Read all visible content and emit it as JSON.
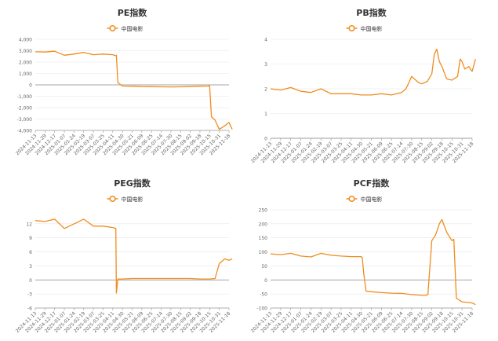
{
  "legend_label": "中国电影",
  "x_tick_labels": [
    "2024-11-13",
    "2024-11-29",
    "2024-12-17",
    "2025-01-07",
    "2025-01-24",
    "2025-02-19",
    "2025-03-07",
    "2025-03-25",
    "2025-04-11",
    "2025-04-30",
    "2025-05-21",
    "2025-06-09",
    "2025-06-25",
    "2025-07-14",
    "2025-07-30",
    "2025-08-15",
    "2025-09-02",
    "2025-09-18",
    "2025-10-15",
    "2025-10-31",
    "2025-11-18"
  ],
  "chart_data": [
    {
      "type": "line",
      "title": "PE指数",
      "legend": "top-center",
      "grid": true,
      "ylim": [
        -4000,
        4000
      ],
      "y_ticks": [
        -4000,
        -3000,
        -2000,
        -1000,
        0,
        1000,
        2000,
        3000,
        4000
      ],
      "y_tick_labels": [
        "-4,000",
        "-3,000",
        "-2,000",
        "-1,000",
        "0",
        "1,000",
        "2,000",
        "3,000",
        "4,000"
      ],
      "series": [
        {
          "name": "中国电影",
          "color": "#f08c1e",
          "x": [
            "2024-11-13",
            "2024-11-29",
            "2024-12-17",
            "2025-01-07",
            "2025-01-24",
            "2025-02-19",
            "2025-03-07",
            "2025-03-25",
            "2025-04-11",
            "2025-04-17",
            "2025-04-18",
            "2025-04-21",
            "2025-04-30",
            "2025-05-21",
            "2025-06-09",
            "2025-06-25",
            "2025-07-14",
            "2025-07-30",
            "2025-08-15",
            "2025-09-02",
            "2025-09-18",
            "2025-10-10",
            "2025-10-15",
            "2025-10-18",
            "2025-10-24",
            "2025-10-31",
            "2025-11-10",
            "2025-11-18",
            "2025-11-24"
          ],
          "values": [
            2900,
            2880,
            2950,
            2600,
            2700,
            2850,
            2650,
            2700,
            2650,
            2550,
            2600,
            200,
            -100,
            -120,
            -150,
            -160,
            -170,
            -180,
            -170,
            -150,
            -120,
            -100,
            -80,
            -2800,
            -3100,
            -3900,
            -3600,
            -3300,
            -3900
          ]
        }
      ]
    },
    {
      "type": "line",
      "title": "PB指数",
      "legend": "top-center",
      "grid": true,
      "ylim": [
        0,
        4
      ],
      "y_ticks": [
        0,
        1,
        2,
        3,
        4
      ],
      "y_tick_labels": [
        "0",
        "1",
        "2",
        "3",
        "4"
      ],
      "series": [
        {
          "name": "中国电影",
          "color": "#f08c1e",
          "x": [
            "2024-11-13",
            "2024-11-29",
            "2024-12-17",
            "2025-01-07",
            "2025-01-24",
            "2025-02-19",
            "2025-03-07",
            "2025-03-25",
            "2025-04-11",
            "2025-04-30",
            "2025-05-21",
            "2025-06-09",
            "2025-06-25",
            "2025-07-14",
            "2025-07-21",
            "2025-07-30",
            "2025-08-10",
            "2025-08-15",
            "2025-08-25",
            "2025-09-02",
            "2025-09-06",
            "2025-09-10",
            "2025-09-14",
            "2025-09-18",
            "2025-10-01",
            "2025-10-15",
            "2025-10-24",
            "2025-10-28",
            "2025-10-31",
            "2025-11-05",
            "2025-11-12",
            "2025-11-18",
            "2025-11-24"
          ],
          "values": [
            2.0,
            1.95,
            2.05,
            1.9,
            1.85,
            2.0,
            1.8,
            1.8,
            1.8,
            1.75,
            1.75,
            1.8,
            1.75,
            1.85,
            2.0,
            2.5,
            2.25,
            2.2,
            2.3,
            2.6,
            3.4,
            3.6,
            3.1,
            2.9,
            2.4,
            2.35,
            2.5,
            3.2,
            3.1,
            2.8,
            2.9,
            2.7,
            3.2
          ]
        }
      ]
    },
    {
      "type": "line",
      "title": "PEG指数",
      "legend": "top-center",
      "grid": true,
      "ylim": [
        -6,
        15
      ],
      "y_ticks": [
        -6,
        -3,
        0,
        3,
        6,
        9,
        12
      ],
      "y_tick_labels": [
        "-6",
        "-3",
        "0",
        "3",
        "6",
        "9",
        "12"
      ],
      "series": [
        {
          "name": "中国电影",
          "color": "#f08c1e",
          "x": [
            "2024-11-13",
            "2024-11-29",
            "2024-12-17",
            "2025-01-07",
            "2025-01-24",
            "2025-02-19",
            "2025-03-07",
            "2025-03-25",
            "2025-04-11",
            "2025-04-17",
            "2025-04-18",
            "2025-04-21",
            "2025-04-30",
            "2025-05-21",
            "2025-06-09",
            "2025-06-25",
            "2025-07-14",
            "2025-07-30",
            "2025-08-15",
            "2025-09-02",
            "2025-09-18",
            "2025-10-15",
            "2025-10-24",
            "2025-10-31",
            "2025-11-05",
            "2025-11-10",
            "2025-11-18",
            "2025-11-24"
          ],
          "values": [
            12.7,
            12.5,
            13.0,
            11.0,
            12.0,
            13.0,
            11.5,
            11.5,
            11.2,
            11.0,
            -2.8,
            0.2,
            0.2,
            0.3,
            0.3,
            0.3,
            0.3,
            0.3,
            0.3,
            0.3,
            0.2,
            0.2,
            0.3,
            3.5,
            4.0,
            4.5,
            4.2,
            4.5
          ]
        }
      ]
    },
    {
      "type": "line",
      "title": "PCF指数",
      "legend": "top-center",
      "grid": true,
      "ylim": [
        -100,
        250
      ],
      "y_ticks": [
        -100,
        -50,
        0,
        50,
        100,
        150,
        200,
        250
      ],
      "y_tick_labels": [
        "-100",
        "-50",
        "0",
        "50",
        "100",
        "150",
        "200",
        "250"
      ],
      "series": [
        {
          "name": "中国电影",
          "color": "#f08c1e",
          "x": [
            "2024-11-13",
            "2024-11-29",
            "2024-12-17",
            "2025-01-07",
            "2025-01-24",
            "2025-02-19",
            "2025-03-07",
            "2025-03-25",
            "2025-04-11",
            "2025-04-30",
            "2025-05-02",
            "2025-05-05",
            "2025-05-10",
            "2025-05-21",
            "2025-06-09",
            "2025-06-25",
            "2025-07-14",
            "2025-07-30",
            "2025-08-15",
            "2025-08-22",
            "2025-08-26",
            "2025-09-02",
            "2025-09-08",
            "2025-09-14",
            "2025-09-18",
            "2025-10-01",
            "2025-10-15",
            "2025-10-18",
            "2025-10-22",
            "2025-10-31",
            "2025-11-18",
            "2025-11-24"
          ],
          "values": [
            93,
            90,
            95,
            85,
            82,
            95,
            88,
            85,
            83,
            83,
            80,
            25,
            -40,
            -42,
            -45,
            -47,
            -48,
            -52,
            -55,
            -55,
            -52,
            140,
            160,
            200,
            215,
            170,
            140,
            145,
            -65,
            -78,
            -82,
            -88
          ]
        }
      ]
    }
  ]
}
